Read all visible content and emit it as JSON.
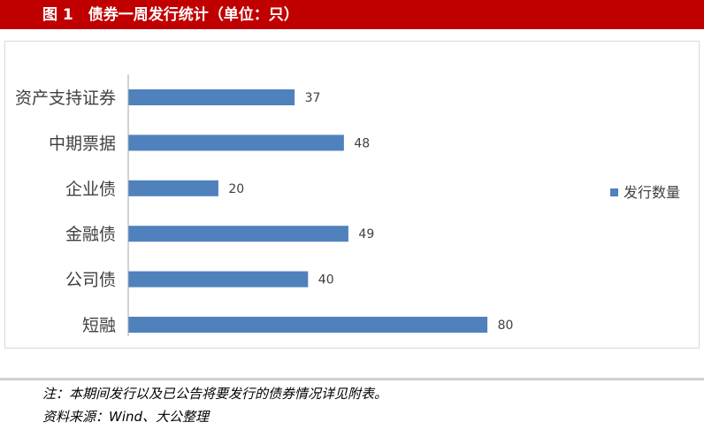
{
  "header": {
    "title": "图 1　债券一周发行统计（单位：只）"
  },
  "chart_data": {
    "type": "bar",
    "orientation": "horizontal",
    "categories": [
      "资产支持证券",
      "中期票据",
      "企业债",
      "金融债",
      "公司债",
      "短融"
    ],
    "series": [
      {
        "name": "发行数量",
        "values": [
          37,
          48,
          20,
          49,
          40,
          80
        ],
        "color": "#4f81bd"
      }
    ],
    "title": "",
    "xlabel": "",
    "ylabel": "",
    "xlim": [
      0,
      80
    ],
    "grid": false,
    "legend": "right"
  },
  "notes": {
    "note": "注：本期间发行以及已公告将要发行的债券情况详见附表。",
    "source": "资料来源：Wind、大公整理"
  }
}
